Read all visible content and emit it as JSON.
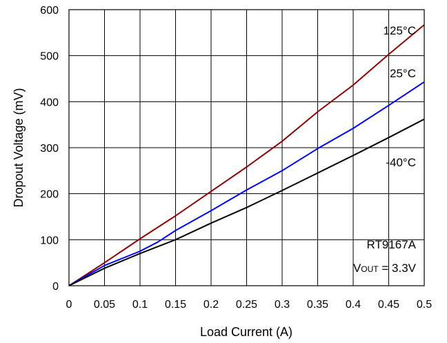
{
  "chart_data": {
    "type": "line",
    "xlabel": "Load Current (A)",
    "ylabel": "Dropout Voltage  (mV)",
    "xlim": [
      0,
      0.5
    ],
    "ylim": [
      0,
      600
    ],
    "xticks": [
      "0",
      "0.05",
      "0.1",
      "0.15",
      "0.2",
      "0.25",
      "0.3",
      "0.35",
      "0.4",
      "0.45",
      "0.5"
    ],
    "xtick_values": [
      0,
      0.05,
      0.1,
      0.15,
      0.2,
      0.25,
      0.3,
      0.35,
      0.4,
      0.45,
      0.5
    ],
    "yticks": [
      "0",
      "100",
      "200",
      "300",
      "400",
      "500",
      "600"
    ],
    "ytick_values": [
      0,
      100,
      200,
      300,
      400,
      500,
      600
    ],
    "grid": true,
    "series": [
      {
        "name": "125°C",
        "color": "#8B0000",
        "x": [
          0,
          0.05,
          0.1,
          0.15,
          0.2,
          0.25,
          0.3,
          0.35,
          0.4,
          0.45,
          0.5
        ],
        "y": [
          0,
          50,
          102,
          152,
          205,
          258,
          314,
          378,
          436,
          503,
          567
        ]
      },
      {
        "name": "25°C",
        "color": "#0000FF",
        "x": [
          0,
          0.05,
          0.1,
          0.125,
          0.15,
          0.2,
          0.25,
          0.3,
          0.35,
          0.4,
          0.45,
          0.5
        ],
        "y": [
          0,
          44,
          75,
          95,
          120,
          163,
          208,
          250,
          298,
          342,
          392,
          443
        ]
      },
      {
        "name": "-40°C",
        "color": "#000000",
        "x": [
          0,
          0.05,
          0.1,
          0.15,
          0.2,
          0.25,
          0.3,
          0.35,
          0.4,
          0.45,
          0.5
        ],
        "y": [
          0,
          38,
          70,
          100,
          136,
          170,
          207,
          245,
          283,
          322,
          362
        ]
      }
    ],
    "annotations": {
      "device": "RT9167A",
      "vout_prefix": "V",
      "vout_sub": "OUT",
      "vout_suffix": " = 3.3V"
    }
  }
}
